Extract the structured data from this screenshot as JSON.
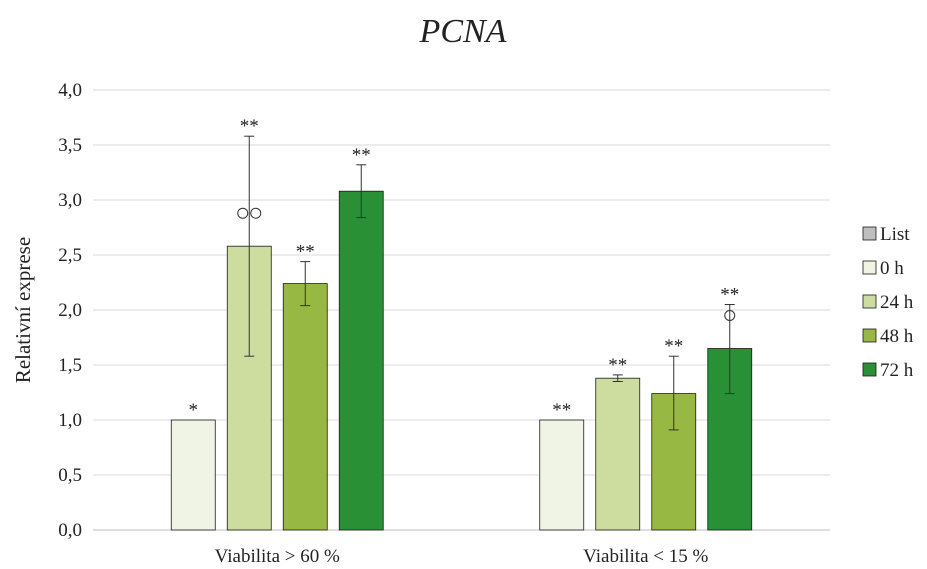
{
  "chart_data": {
    "type": "bar",
    "title": "PCNA",
    "xlabel": "",
    "ylabel": "Relativní exprese",
    "ylim": [
      0,
      4.0
    ],
    "yticks": [
      "0,0",
      "0,5",
      "1,0",
      "1,5",
      "2,0",
      "2,5",
      "3,0",
      "3,5",
      "4,0"
    ],
    "grid": true,
    "legend_position": "right",
    "categories": [
      "Viabilita > 60 %",
      "Viabilita < 15 %"
    ],
    "series": [
      {
        "name": "List",
        "color": "#bfbfbf",
        "values": [
          null,
          null
        ],
        "err_low": [
          null,
          null
        ],
        "err_high": [
          null,
          null
        ],
        "sig": [
          "",
          ""
        ],
        "markers": [
          0,
          0
        ]
      },
      {
        "name": "0 h",
        "color": "#f0f4e4",
        "values": [
          1.0,
          1.0
        ],
        "err_low": [
          1.0,
          1.0
        ],
        "err_high": [
          1.0,
          1.0
        ],
        "sig": [
          "*",
          "**"
        ],
        "markers": [
          0,
          0
        ]
      },
      {
        "name": "24 h",
        "color": "#cddd9f",
        "values": [
          2.58,
          1.38
        ],
        "err_low": [
          1.58,
          1.35
        ],
        "err_high": [
          3.58,
          1.41
        ],
        "sig": [
          "**",
          "**"
        ],
        "markers": [
          2,
          0
        ]
      },
      {
        "name": "48 h",
        "color": "#97b843",
        "values": [
          2.24,
          1.24
        ],
        "err_low": [
          2.04,
          0.91
        ],
        "err_high": [
          2.44,
          1.58
        ],
        "sig": [
          "**",
          "**"
        ],
        "markers": [
          0,
          0
        ]
      },
      {
        "name": "72 h",
        "color": "#2a9035",
        "values": [
          3.08,
          1.65
        ],
        "err_low": [
          2.84,
          1.24
        ],
        "err_high": [
          3.32,
          2.05
        ],
        "sig": [
          "**",
          "**"
        ],
        "markers": [
          0,
          1
        ]
      }
    ]
  }
}
